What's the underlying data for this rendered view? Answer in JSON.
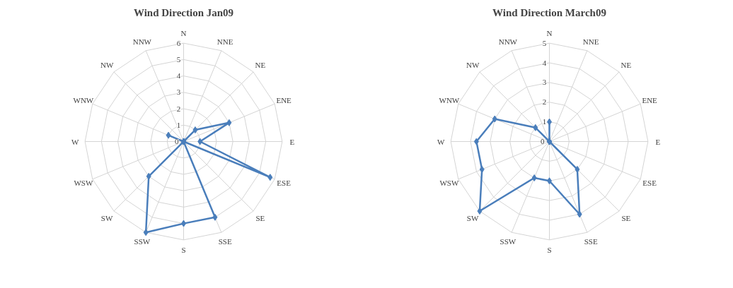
{
  "chart_data": [
    {
      "type": "radar",
      "title": "Wind Direction Jan09",
      "categories": [
        "N",
        "NNE",
        "NE",
        "ENE",
        "E",
        "ESE",
        "SE",
        "SSE",
        "S",
        "SSW",
        "SW",
        "WSW",
        "W",
        "WNW",
        "NW",
        "NNW"
      ],
      "series": [
        {
          "color": "#4a7ebb",
          "values": [
            0,
            0,
            1,
            3,
            1,
            5.7,
            0,
            5,
            5,
            6,
            3,
            0,
            0,
            1,
            0,
            0
          ]
        }
      ],
      "ylim": [
        0,
        6
      ],
      "yticks": [
        0,
        1,
        2,
        3,
        4,
        5,
        6
      ],
      "grid": true,
      "marker": "diamond",
      "line_style": "solid"
    },
    {
      "type": "radar",
      "title": "Wind Direction March09",
      "categories": [
        "N",
        "NNE",
        "NE",
        "ENE",
        "E",
        "ESE",
        "SE",
        "SSE",
        "S",
        "SSW",
        "SW",
        "WSW",
        "W",
        "WNW",
        "NW",
        "NNW"
      ],
      "series": [
        {
          "color": "#4a7ebb",
          "values": [
            1,
            0,
            0,
            0,
            0,
            0,
            2,
            4,
            2,
            2,
            5,
            3.7,
            3.7,
            3,
            1,
            0
          ]
        }
      ],
      "ylim": [
        0,
        5
      ],
      "yticks": [
        0,
        1,
        2,
        3,
        4,
        5
      ],
      "grid": true,
      "marker": "diamond",
      "line_style": "solid"
    }
  ]
}
